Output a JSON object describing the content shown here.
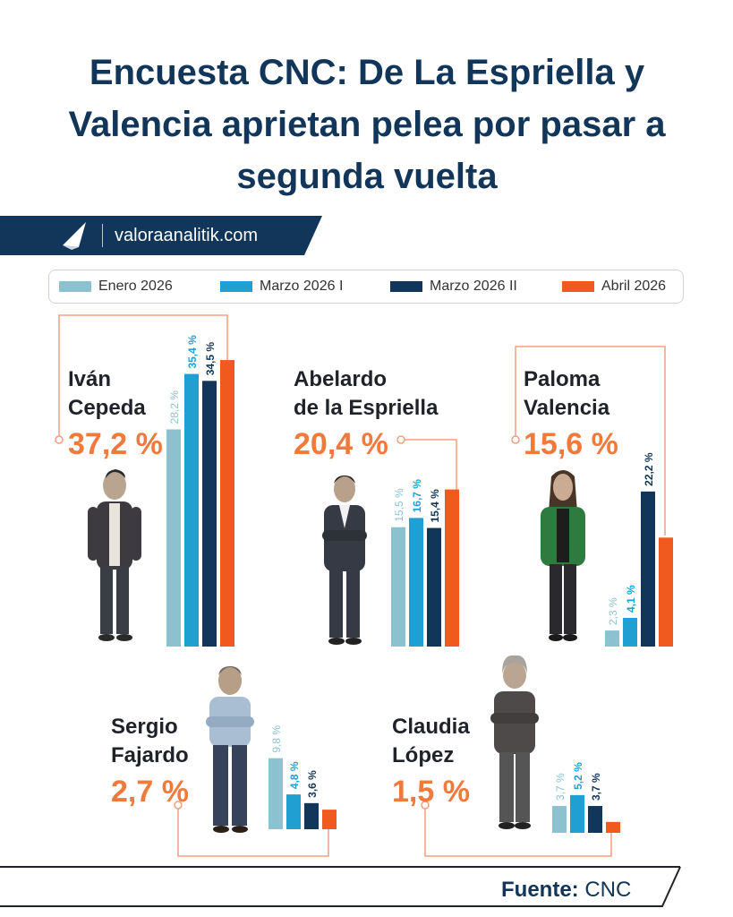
{
  "title": "Encuesta CNC: De La Espriella y Valencia aprietan pelea por pasar a segunda vuelta",
  "brand": {
    "site": "valoraanalitik.com",
    "icon": "valora-logo-icon"
  },
  "legend": [
    {
      "label": "Enero 2026",
      "color": "#8cc2cf"
    },
    {
      "label": "Marzo 2026 I",
      "color": "#1f9fd2"
    },
    {
      "label": "Marzo 2026 II",
      "color": "#123659"
    },
    {
      "label": "Abril 2026",
      "color": "#f05a1e"
    }
  ],
  "candidates": [
    {
      "name": "Iván\nCepeda",
      "result": "37,2 %"
    },
    {
      "name": "Abelardo\nde la Espriella",
      "result": "20,4 %"
    },
    {
      "name": "Paloma\nValencia",
      "result": "15,6 %"
    },
    {
      "name": "Sergio\nFajardo",
      "result": "2,7 %"
    },
    {
      "name": "Claudia\nLópez",
      "result": "1,5 %"
    }
  ],
  "chart_data": {
    "type": "bar",
    "series_names": [
      "Enero 2026",
      "Marzo 2026 I",
      "Marzo 2026 II",
      "Abril 2026"
    ],
    "groups": [
      {
        "candidate": "Iván Cepeda",
        "values": [
          28.2,
          35.4,
          34.5,
          37.2
        ],
        "labels": [
          "28,2 %",
          "35,4 %",
          "34,5 %",
          ""
        ]
      },
      {
        "candidate": "Abelardo de la Espriella",
        "values": [
          15.5,
          16.7,
          15.4,
          20.4
        ],
        "labels": [
          "15,5 %",
          "16,7 %",
          "15,4 %",
          ""
        ]
      },
      {
        "candidate": "Paloma Valencia",
        "values": [
          2.3,
          4.1,
          22.2,
          15.6
        ],
        "labels": [
          "2,3 %",
          "4,1 %",
          "22,2 %",
          ""
        ]
      },
      {
        "candidate": "Sergio Fajardo",
        "values": [
          9.8,
          4.8,
          3.6,
          2.7
        ],
        "labels": [
          "9,8 %",
          "4,8 %",
          "3,6 %",
          ""
        ]
      },
      {
        "candidate": "Claudia López",
        "values": [
          3.7,
          5.2,
          3.7,
          1.5
        ],
        "labels": [
          "3,7 %",
          "5,2 %",
          "3,7 %",
          ""
        ]
      }
    ]
  },
  "footer": {
    "label": "Fuente:",
    "source": "CNC"
  }
}
